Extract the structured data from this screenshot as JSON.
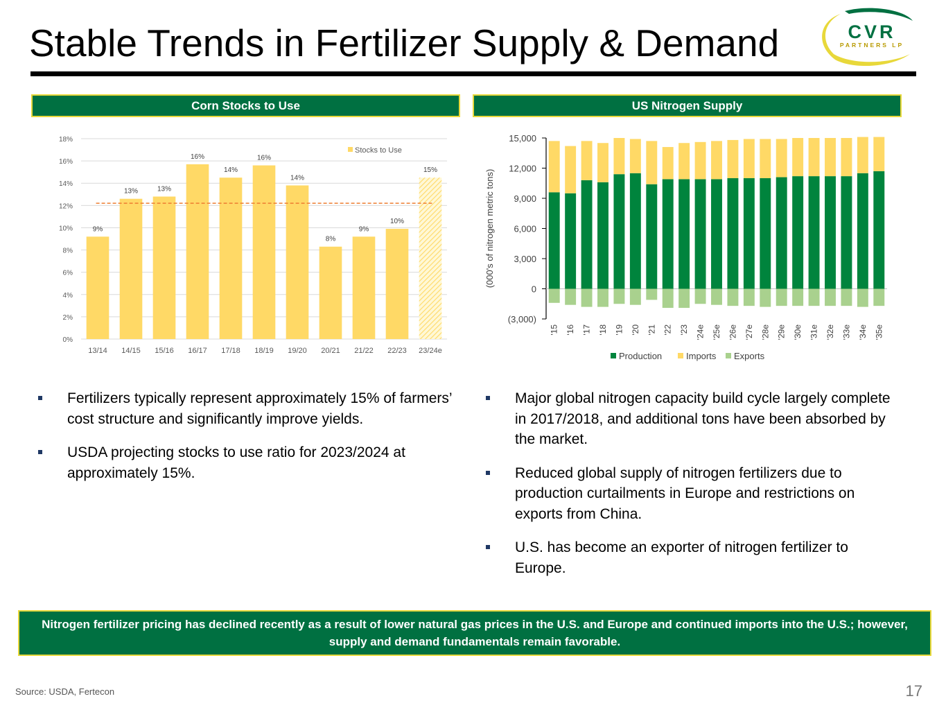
{
  "page": {
    "title": "Stable Trends in Fertilizer Supply & Demand",
    "page_number": "17",
    "source": "Source:  USDA, Fertecon",
    "logo": {
      "main": "CVR",
      "sub": "PARTNERS LP"
    },
    "colors": {
      "brand_green": "#007041",
      "brand_yellow": "#e8d83a"
    }
  },
  "left_panel": {
    "header": "Corn Stocks to Use",
    "bullets": [
      "Fertilizers typically represent approximately 15% of farmers’ cost structure and significantly improve yields.",
      "USDA projecting stocks to use ratio for 2023/2024 at approximately 15%."
    ]
  },
  "right_panel": {
    "header": "US Nitrogen Supply",
    "bullets": [
      "Major global nitrogen capacity build cycle largely complete in 2017/2018, and additional tons have been absorbed by the market.",
      "Reduced global supply of nitrogen fertilizers due to production curtailments in Europe and restrictions on exports from China.",
      "U.S. has become an exporter of nitrogen fertilizer to Europe."
    ]
  },
  "banner": {
    "text": "Nitrogen fertilizer pricing has declined recently as a result of lower natural gas prices in the U.S. and Europe and continued imports into the U.S.; however, supply and demand fundamentals remain favorable."
  },
  "chart_data": [
    {
      "type": "bar",
      "categories": [
        "13/14",
        "14/15",
        "15/16",
        "16/17",
        "17/18",
        "18/19",
        "19/20",
        "20/21",
        "21/22",
        "22/23",
        "23/24e"
      ],
      "values": [
        9.2,
        12.6,
        12.8,
        15.7,
        14.5,
        15.6,
        13.8,
        8.3,
        9.2,
        9.9,
        14.5
      ],
      "data_labels": [
        "9%",
        "13%",
        "13%",
        "16%",
        "14%",
        "16%",
        "14%",
        "8%",
        "9%",
        "10%",
        "15%"
      ],
      "series_name": "Stocks to Use",
      "average_line": 12.2,
      "projected_category": "23/24e",
      "ylim": [
        0,
        18
      ],
      "yticks": [
        "0%",
        "2%",
        "4%",
        "6%",
        "8%",
        "10%",
        "12%",
        "14%",
        "16%",
        "18%"
      ],
      "legend_position": "top-right",
      "grid": true,
      "colors": {
        "bar": "#ffd966",
        "average_line": "#ed7d31"
      }
    },
    {
      "type": "bar",
      "stacked": true,
      "categories": [
        "'15",
        "'16",
        "'17",
        "'18",
        "'19",
        "'20",
        "'21",
        "'22",
        "'23",
        "'24e",
        "'25e",
        "'26e",
        "'27e",
        "'28e",
        "'29e",
        "'30e",
        "'31e",
        "'32e",
        "'33e",
        "'34e",
        "'35e"
      ],
      "series": [
        {
          "name": "Production",
          "color": "#00843d",
          "values": [
            9600,
            9500,
            10800,
            10600,
            11400,
            11500,
            10400,
            10900,
            10900,
            10900,
            10900,
            11000,
            11000,
            11000,
            11100,
            11200,
            11200,
            11200,
            11200,
            11500,
            11700
          ]
        },
        {
          "name": "Imports",
          "color": "#ffd966",
          "values": [
            5100,
            4700,
            3900,
            3900,
            3600,
            3400,
            4300,
            3200,
            3600,
            3700,
            3800,
            3800,
            3900,
            3900,
            3800,
            3800,
            3800,
            3800,
            3800,
            3600,
            3400
          ]
        },
        {
          "name": "Exports",
          "color": "#a9d18e",
          "values": [
            -1400,
            -1600,
            -1800,
            -1800,
            -1500,
            -1600,
            -1100,
            -1900,
            -1900,
            -1500,
            -1600,
            -1700,
            -1700,
            -1800,
            -1700,
            -1700,
            -1700,
            -1700,
            -1700,
            -1800,
            -1700
          ]
        }
      ],
      "ylabel": "(000's of nitrogen metric tons)",
      "ylim": [
        -3000,
        15000
      ],
      "yticks": [
        "(3,000)",
        "0",
        "3,000",
        "6,000",
        "9,000",
        "12,000",
        "15,000"
      ],
      "legend_position": "bottom",
      "grid": false
    }
  ]
}
